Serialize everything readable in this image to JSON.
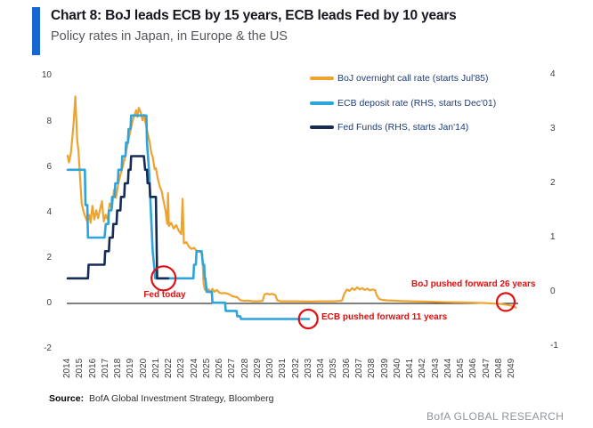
{
  "header": {
    "title": "Chart 8: BoJ leads ECB by 15 years, ECB leads Fed by 10 years",
    "subtitle": "Policy rates in Japan, in Europe & the US"
  },
  "colors": {
    "accent_blue": "#1866d2",
    "gold": "#efa32f",
    "light_blue": "#2ea4dc",
    "navy": "#172c55",
    "annotation_red": "#e01010",
    "zero_line": "#000000",
    "axis_text": "#3d3d3d",
    "legend_text": "#1f3c77"
  },
  "legend": [
    {
      "label": "BoJ overnight call rate (starts Jul'85)",
      "color": "#efa32f"
    },
    {
      "label": "ECB deposit rate (RHS, starts Dec'01)",
      "color": "#2ea4dc"
    },
    {
      "label": "Fed Funds (RHS, starts Jan'14)",
      "color": "#172c55"
    }
  ],
  "source": {
    "label": "Source:",
    "text": "BofA Global Investment Strategy, Bloomberg"
  },
  "branding": "BofA GLOBAL RESEARCH",
  "chart_data": {
    "type": "line",
    "title": "Chart 8: BoJ leads ECB by 15 years, ECB leads Fed by 10 years",
    "subtitle": "Policy rates in Japan, in Europe & the US",
    "grid": false,
    "legend_position": "inside-top-right",
    "x_axis": {
      "range": [
        2014,
        2049
      ],
      "tick_years": [
        2014,
        2015,
        2016,
        2017,
        2018,
        2019,
        2020,
        2021,
        2022,
        2023,
        2024,
        2025,
        2026,
        2027,
        2028,
        2029,
        2030,
        2031,
        2032,
        2033,
        2034,
        2035,
        2036,
        2037,
        2038,
        2039,
        2040,
        2041,
        2042,
        2043,
        2044,
        2045,
        2046,
        2047,
        2048,
        2049
      ]
    },
    "left_axis": {
      "range": [
        -2,
        10
      ],
      "ticks": [
        10,
        8,
        6,
        4,
        2,
        0,
        -2
      ]
    },
    "right_axis": {
      "range": [
        -1,
        4
      ],
      "ticks": [
        4,
        3,
        2,
        1,
        0,
        -1
      ]
    },
    "series": [
      {
        "id": "boj",
        "name": "BoJ overnight call rate (starts Jul'85)",
        "axis": "left",
        "color": "#efa32f",
        "width": 2.2,
        "points": [
          [
            2014.0,
            6.5
          ],
          [
            2014.1,
            6.2
          ],
          [
            2014.25,
            6.6
          ],
          [
            2014.45,
            7.8
          ],
          [
            2014.6,
            9.1
          ],
          [
            2014.75,
            7.2
          ],
          [
            2014.85,
            6.7
          ],
          [
            2015.0,
            5.3
          ],
          [
            2015.1,
            4.4
          ],
          [
            2015.25,
            4.05
          ],
          [
            2015.4,
            3.8
          ],
          [
            2015.55,
            3.6
          ],
          [
            2015.7,
            3.9
          ],
          [
            2015.8,
            3.55
          ],
          [
            2015.95,
            4.3
          ],
          [
            2016.1,
            3.7
          ],
          [
            2016.25,
            4.1
          ],
          [
            2016.4,
            3.75
          ],
          [
            2016.55,
            4.15
          ],
          [
            2016.7,
            4.5
          ],
          [
            2016.85,
            3.6
          ],
          [
            2017.0,
            3.9
          ],
          [
            2017.15,
            3.7
          ],
          [
            2017.3,
            4.4
          ],
          [
            2017.5,
            4.2
          ],
          [
            2017.65,
            5.0
          ],
          [
            2017.8,
            4.65
          ],
          [
            2018.0,
            5.3
          ],
          [
            2018.2,
            5.75
          ],
          [
            2018.4,
            6.15
          ],
          [
            2018.55,
            6.5
          ],
          [
            2018.7,
            6.95
          ],
          [
            2018.85,
            7.35
          ],
          [
            2019.0,
            7.75
          ],
          [
            2019.15,
            8.1
          ],
          [
            2019.3,
            8.35
          ],
          [
            2019.4,
            8.5
          ],
          [
            2019.5,
            8.2
          ],
          [
            2019.6,
            8.6
          ],
          [
            2019.75,
            8.4
          ],
          [
            2019.9,
            8.05
          ],
          [
            2020.0,
            8.3
          ],
          [
            2020.15,
            7.9
          ],
          [
            2020.3,
            7.5
          ],
          [
            2020.45,
            7.1
          ],
          [
            2020.6,
            6.6
          ],
          [
            2020.7,
            6.45
          ],
          [
            2020.85,
            5.9
          ],
          [
            2020.95,
            5.95
          ],
          [
            2021.1,
            5.5
          ],
          [
            2021.25,
            5.15
          ],
          [
            2021.4,
            4.95
          ],
          [
            2021.55,
            4.5
          ],
          [
            2021.7,
            4.1
          ],
          [
            2021.85,
            3.5
          ],
          [
            2021.9,
            4.85
          ],
          [
            2021.97,
            3.4
          ],
          [
            2022.15,
            3.55
          ],
          [
            2022.35,
            3.3
          ],
          [
            2022.55,
            3.45
          ],
          [
            2022.75,
            3.2
          ],
          [
            2022.95,
            3.05
          ],
          [
            2023.05,
            4.6
          ],
          [
            2023.15,
            2.65
          ],
          [
            2023.35,
            2.7
          ],
          [
            2023.55,
            2.5
          ],
          [
            2023.75,
            2.4
          ],
          [
            2023.95,
            2.45
          ],
          [
            2024.2,
            2.3
          ],
          [
            2024.5,
            2.25
          ],
          [
            2024.6,
            2.2
          ],
          [
            2024.7,
            0.9
          ],
          [
            2024.8,
            0.62
          ],
          [
            2024.95,
            0.55
          ],
          [
            2025.1,
            0.63
          ],
          [
            2025.25,
            0.5
          ],
          [
            2025.4,
            0.65
          ],
          [
            2025.55,
            0.52
          ],
          [
            2025.75,
            0.6
          ],
          [
            2025.95,
            0.48
          ],
          [
            2026.15,
            0.45
          ],
          [
            2026.35,
            0.47
          ],
          [
            2026.55,
            0.44
          ],
          [
            2026.75,
            0.4
          ],
          [
            2026.95,
            0.33
          ],
          [
            2027.15,
            0.3
          ],
          [
            2027.35,
            0.28
          ],
          [
            2027.6,
            0.15
          ],
          [
            2027.9,
            0.12
          ],
          [
            2028.2,
            0.13
          ],
          [
            2028.6,
            0.1
          ],
          [
            2029.0,
            0.1
          ],
          [
            2029.35,
            0.12
          ],
          [
            2029.5,
            0.4
          ],
          [
            2029.7,
            0.44
          ],
          [
            2029.9,
            0.4
          ],
          [
            2030.1,
            0.43
          ],
          [
            2030.35,
            0.38
          ],
          [
            2030.5,
            0.15
          ],
          [
            2030.75,
            0.1
          ],
          [
            2031.2,
            0.1
          ],
          [
            2032.0,
            0.1
          ],
          [
            2033.0,
            0.09
          ],
          [
            2034.0,
            0.1
          ],
          [
            2035.0,
            0.1
          ],
          [
            2035.6,
            0.13
          ],
          [
            2035.8,
            0.45
          ],
          [
            2036.0,
            0.62
          ],
          [
            2036.2,
            0.55
          ],
          [
            2036.4,
            0.68
          ],
          [
            2036.6,
            0.6
          ],
          [
            2036.8,
            0.72
          ],
          [
            2037.0,
            0.62
          ],
          [
            2037.2,
            0.68
          ],
          [
            2037.4,
            0.6
          ],
          [
            2037.6,
            0.66
          ],
          [
            2037.8,
            0.58
          ],
          [
            2038.0,
            0.62
          ],
          [
            2038.2,
            0.6
          ],
          [
            2038.35,
            0.35
          ],
          [
            2038.55,
            0.2
          ],
          [
            2038.8,
            0.16
          ],
          [
            2039.2,
            0.14
          ],
          [
            2040.0,
            0.12
          ],
          [
            2041.0,
            0.1
          ],
          [
            2042.0,
            0.09
          ],
          [
            2043.0,
            0.07
          ],
          [
            2044.0,
            0.06
          ],
          [
            2045.0,
            0.05
          ],
          [
            2046.0,
            0.04
          ],
          [
            2047.0,
            0.02
          ],
          [
            2047.6,
            0.0
          ],
          [
            2048.2,
            -0.02
          ],
          [
            2048.6,
            -0.05
          ],
          [
            2049.0,
            -0.1
          ],
          [
            2049.3,
            -0.18
          ]
        ]
      },
      {
        "id": "ecb",
        "name": "ECB deposit rate (RHS, starts Dec'01)",
        "axis": "right",
        "color": "#2ea4dc",
        "width": 2.6,
        "points": [
          [
            2014.0,
            2.25
          ],
          [
            2015.35,
            2.25
          ],
          [
            2015.4,
            1.6
          ],
          [
            2015.55,
            1.6
          ],
          [
            2015.6,
            1.0
          ],
          [
            2016.9,
            1.0
          ],
          [
            2017.0,
            1.25
          ],
          [
            2017.2,
            1.25
          ],
          [
            2017.25,
            1.5
          ],
          [
            2017.45,
            1.5
          ],
          [
            2017.5,
            1.75
          ],
          [
            2017.7,
            1.75
          ],
          [
            2017.75,
            2.0
          ],
          [
            2017.95,
            2.0
          ],
          [
            2018.0,
            2.25
          ],
          [
            2018.25,
            2.25
          ],
          [
            2018.3,
            2.5
          ],
          [
            2018.55,
            2.5
          ],
          [
            2018.6,
            2.75
          ],
          [
            2018.75,
            2.75
          ],
          [
            2018.8,
            3.0
          ],
          [
            2018.95,
            3.0
          ],
          [
            2019.0,
            3.25
          ],
          [
            2020.2,
            3.25
          ],
          [
            2020.25,
            2.75
          ],
          [
            2020.4,
            2.25
          ],
          [
            2020.5,
            1.75
          ],
          [
            2020.6,
            1.25
          ],
          [
            2020.7,
            0.75
          ],
          [
            2020.8,
            0.5
          ],
          [
            2020.9,
            0.25
          ],
          [
            2023.9,
            0.25
          ],
          [
            2023.95,
            0.5
          ],
          [
            2024.1,
            0.5
          ],
          [
            2024.15,
            0.75
          ],
          [
            2024.55,
            0.75
          ],
          [
            2024.65,
            0.5
          ],
          [
            2024.75,
            0.5
          ],
          [
            2024.8,
            0.25
          ],
          [
            2024.85,
            0.25
          ],
          [
            2024.95,
            0.0
          ],
          [
            2025.35,
            0.0
          ],
          [
            2025.4,
            -0.2
          ],
          [
            2026.4,
            -0.2
          ],
          [
            2026.45,
            -0.35
          ],
          [
            2027.3,
            -0.35
          ],
          [
            2027.35,
            -0.45
          ],
          [
            2027.6,
            -0.45
          ],
          [
            2027.65,
            -0.5
          ],
          [
            2033.0,
            -0.5
          ]
        ]
      },
      {
        "id": "fed",
        "name": "Fed Funds (RHS, starts Jan'14)",
        "axis": "right",
        "color": "#172c55",
        "width": 2.6,
        "points": [
          [
            2014.0,
            0.25
          ],
          [
            2015.6,
            0.25
          ],
          [
            2015.65,
            0.5
          ],
          [
            2016.9,
            0.5
          ],
          [
            2016.95,
            0.75
          ],
          [
            2017.25,
            0.75
          ],
          [
            2017.3,
            1.0
          ],
          [
            2017.55,
            1.0
          ],
          [
            2017.6,
            1.25
          ],
          [
            2017.85,
            1.25
          ],
          [
            2017.9,
            1.5
          ],
          [
            2018.15,
            1.5
          ],
          [
            2018.2,
            1.75
          ],
          [
            2018.45,
            1.75
          ],
          [
            2018.5,
            2.0
          ],
          [
            2018.75,
            2.0
          ],
          [
            2018.8,
            2.25
          ],
          [
            2018.95,
            2.25
          ],
          [
            2019.0,
            2.5
          ],
          [
            2020.0,
            2.5
          ],
          [
            2020.1,
            2.25
          ],
          [
            2020.25,
            2.25
          ],
          [
            2020.3,
            2.0
          ],
          [
            2020.45,
            2.0
          ],
          [
            2020.5,
            1.75
          ],
          [
            2020.95,
            1.75
          ],
          [
            2021.05,
            0.25
          ],
          [
            2021.9,
            0.25
          ]
        ]
      }
    ],
    "annotations": [
      {
        "text": "Fed today",
        "x": 2021.55,
        "y": 0.25,
        "axis": "right"
      },
      {
        "text": "ECB pushed forward 11 years",
        "x": 2032.95,
        "y": -0.5,
        "axis": "right"
      },
      {
        "text": "BoJ pushed forward 26 years",
        "x": 2048.5,
        "y": 0.07,
        "axis": "left"
      }
    ]
  }
}
